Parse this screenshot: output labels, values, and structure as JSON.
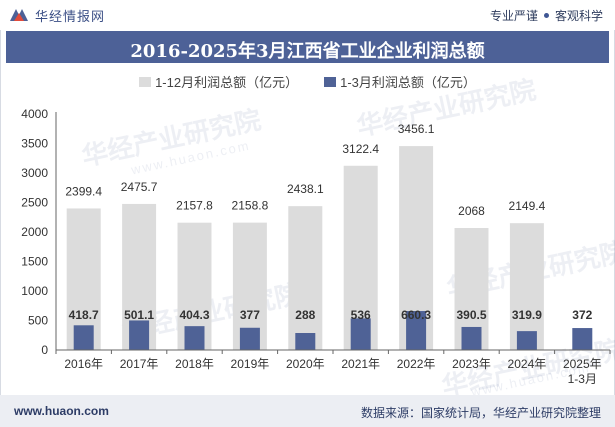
{
  "header": {
    "site_name": "华经情报网",
    "slogan_left": "专业严谨",
    "slogan_right": "客观科学"
  },
  "title": "2016-2025年3月江西省工业企业利润总额",
  "legend": {
    "series_full_year": "1-12月利润总额（亿元）",
    "series_q1": "1-3月利润总额（亿元）"
  },
  "watermark": {
    "text": "华经产业研究院",
    "url": "www.huaon.com"
  },
  "footer": {
    "website": "www.huaon.com",
    "source": "数据来源：国家统计局，华经产业研究院整理"
  },
  "colors": {
    "title_bar": "#4d6197",
    "series_full_year": "#dcdcdc",
    "series_q1": "#4f6296"
  },
  "chart_data": {
    "type": "bar",
    "categories": [
      "2016年",
      "2017年",
      "2018年",
      "2019年",
      "2020年",
      "2021年",
      "2022年",
      "2023年",
      "2024年",
      "2025年1-3月"
    ],
    "category_lines": [
      [
        "2016年"
      ],
      [
        "2017年"
      ],
      [
        "2018年"
      ],
      [
        "2019年"
      ],
      [
        "2020年"
      ],
      [
        "2021年"
      ],
      [
        "2022年"
      ],
      [
        "2023年"
      ],
      [
        "2024年"
      ],
      [
        "2025年",
        "1-3月"
      ]
    ],
    "series": [
      {
        "name": "1-12月利润总额（亿元）",
        "values": [
          2399.4,
          2475.7,
          2157.8,
          2158.8,
          2438.1,
          3122.4,
          3456.1,
          2068,
          2149.4,
          null
        ],
        "labels": [
          "2399.4",
          "2475.7",
          "2157.8",
          "2158.8",
          "2438.1",
          "3122.4",
          "3456.1",
          "2068",
          "2149.4",
          ""
        ]
      },
      {
        "name": "1-3月利润总额（亿元）",
        "values": [
          418.7,
          501.1,
          404.3,
          377,
          288,
          536,
          660.3,
          390.5,
          319.9,
          372
        ],
        "labels": [
          "418.7",
          "501.1",
          "404.3",
          "377",
          "288",
          "536",
          "660.3",
          "390.5",
          "319.9",
          "372"
        ]
      }
    ],
    "ylim": [
      0,
      4000
    ],
    "yticks": [
      0,
      500,
      1000,
      1500,
      2000,
      2500,
      3000,
      3500,
      4000
    ],
    "legend_position": "top-center",
    "grid": false
  }
}
